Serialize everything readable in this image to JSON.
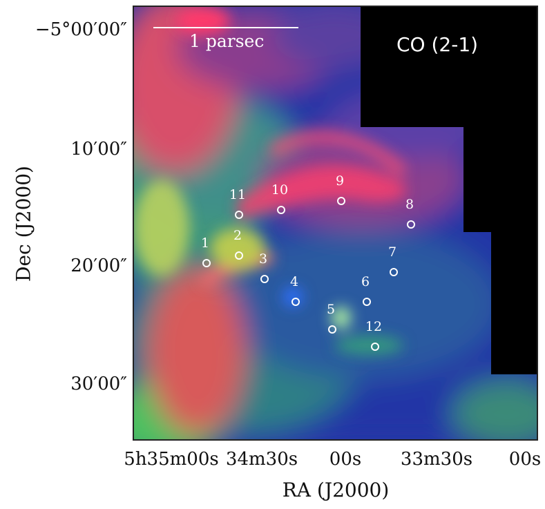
{
  "figure": {
    "axes": {
      "x_label": "RA (J2000)",
      "y_label": "Dec (J2000)",
      "x_ticks": [
        "5h35m00s",
        "34m30s",
        "00s",
        "33m30s",
        "00s"
      ],
      "y_ticks": [
        "−5°00′00″",
        "10′00″",
        "20′00″",
        "30′00″"
      ]
    },
    "line_label": "CO (2-1)",
    "scale_bar_label": "1 parsec",
    "source_labels": [
      "1",
      "2",
      "3",
      "4",
      "5",
      "6",
      "7",
      "8",
      "9",
      "10",
      "11",
      "12"
    ],
    "colors": {
      "background_mask": "#000000",
      "marker": "#ffffff",
      "red_channel": "#ff3a5a",
      "green_channel": "#5fd86a",
      "blue_channel": "#1f2fc0"
    }
  }
}
